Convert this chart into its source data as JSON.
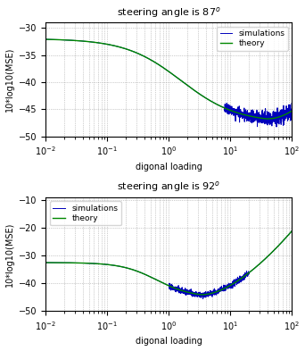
{
  "subplot1": {
    "title": "steering angle is 87$^o$",
    "xlim": [
      0.01,
      100
    ],
    "ylim": [
      -50,
      -29
    ],
    "yticks": [
      -50,
      -45,
      -40,
      -35,
      -30
    ],
    "ylabel": "10*log10(MSE)",
    "xlabel": "digonal loading",
    "sim_color": "#0000bb",
    "theory_color": "#008800",
    "legend_loc": "upper right"
  },
  "subplot2": {
    "title": "steering angle is 92$^o$",
    "xlim": [
      0.01,
      100
    ],
    "ylim": [
      -50,
      -9
    ],
    "yticks": [
      -50,
      -40,
      -30,
      -20,
      -10
    ],
    "ylabel": "10*log10(MSE)",
    "xlabel": "digonal loading",
    "sim_color": "#0000bb",
    "theory_color": "#008800",
    "legend_loc": "upper left"
  }
}
